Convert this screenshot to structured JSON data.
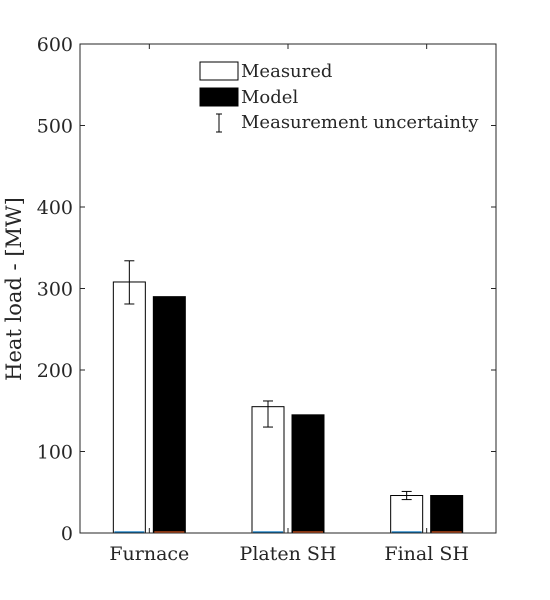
{
  "chart_data": {
    "type": "bar",
    "categories": [
      "Furnace",
      "Platen SH",
      "Final SH"
    ],
    "series": [
      {
        "name": "Measured",
        "values": [
          308,
          155,
          46
        ],
        "error_low": [
          281,
          130,
          41
        ],
        "error_high": [
          334,
          162,
          51
        ],
        "fill": "#ffffff",
        "stroke": "#000000"
      },
      {
        "name": "Model",
        "values": [
          290,
          145,
          46
        ],
        "fill": "#000000",
        "stroke": "#000000"
      }
    ],
    "error_bar_label": "Measurement uncertainty",
    "title": "",
    "xlabel": "",
    "ylabel": "Heat load - [MW]",
    "ylim": [
      0,
      600
    ],
    "yticks": [
      0,
      100,
      200,
      300,
      400,
      500,
      600
    ],
    "grid": false,
    "legend_position": "top-center",
    "baseline_colors": [
      "#0072bd",
      "#d95319"
    ]
  }
}
